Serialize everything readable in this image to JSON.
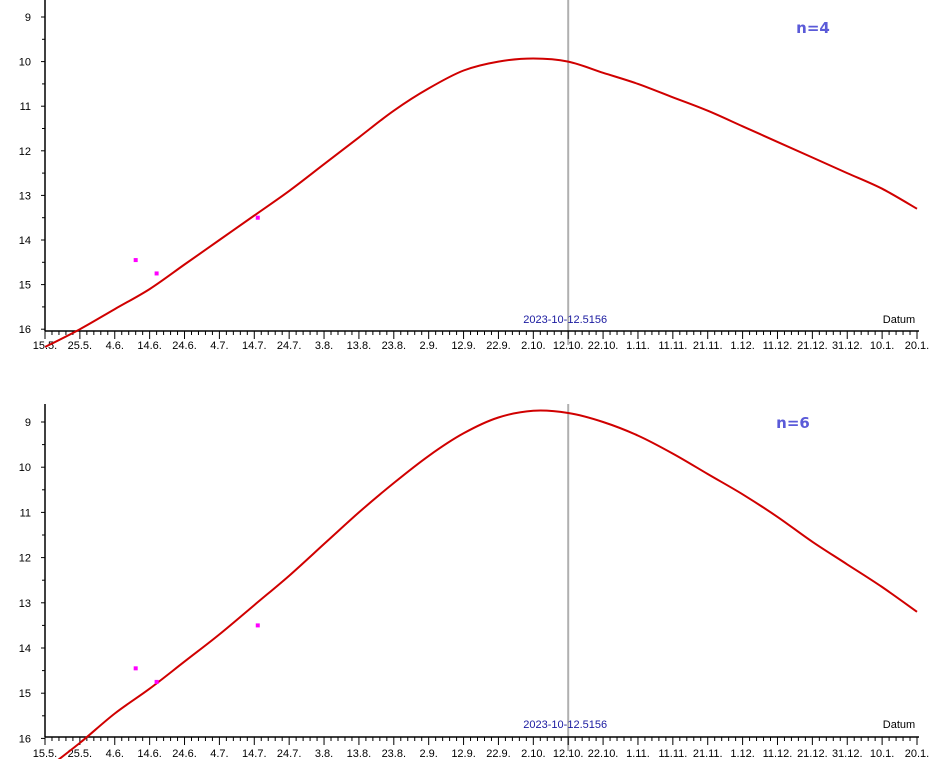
{
  "colors": {
    "curve": "#d00000",
    "points": "#ff00ff",
    "marker": "#b0b0b0",
    "label": "#5a5ad8",
    "date_text": "#1a1aa0",
    "axis": "#000000"
  },
  "chart_data": [
    {
      "type": "line",
      "title": "",
      "annotation": "n=4",
      "xlabel": "Datum",
      "ylabel": "",
      "y_inverted": true,
      "y_ticks": [
        "9",
        "10",
        "11",
        "12",
        "13",
        "14",
        "15",
        "16"
      ],
      "x_ticks": [
        "15.5.",
        "25.5.",
        "4.6.",
        "14.6.",
        "24.6.",
        "4.7.",
        "14.7.",
        "24.7.",
        "3.8.",
        "13.8.",
        "23.8.",
        "2.9.",
        "12.9.",
        "22.9.",
        "2.10.",
        "12.10.",
        "22.10.",
        "1.11.",
        "11.11.",
        "21.11.",
        "1.12.",
        "11.12.",
        "21.12.",
        "31.12.",
        "10.1.",
        "20.1."
      ],
      "marker_label": "2023-10-12.5156",
      "marker_x": "2023-10-12",
      "series": [
        {
          "x": [
            "2023-05-15",
            "2023-05-25",
            "2023-06-04",
            "2023-06-14",
            "2023-06-24",
            "2023-07-04",
            "2023-07-14",
            "2023-07-24",
            "2023-08-03",
            "2023-08-13",
            "2023-08-23",
            "2023-09-02",
            "2023-09-12",
            "2023-09-22",
            "2023-10-02",
            "2023-10-12",
            "2023-10-22",
            "2023-11-01",
            "2023-11-11",
            "2023-11-21",
            "2023-12-01",
            "2023-12-11",
            "2023-12-21",
            "2023-12-31",
            "2024-01-10",
            "2024-01-20"
          ],
          "y": [
            16.4,
            16.0,
            15.55,
            15.1,
            14.55,
            14.0,
            13.45,
            12.9,
            12.3,
            11.7,
            11.1,
            10.6,
            10.2,
            10.0,
            9.93,
            10.0,
            10.25,
            10.5,
            10.8,
            11.1,
            11.45,
            11.8,
            12.15,
            12.5,
            12.85,
            13.3
          ]
        }
      ],
      "observations": {
        "x": [
          "2023-06-10",
          "2023-06-16",
          "2023-07-15"
        ],
        "y": [
          14.45,
          14.75,
          13.5
        ]
      }
    },
    {
      "type": "line",
      "title": "",
      "annotation": "n=6",
      "xlabel": "Datum",
      "ylabel": "",
      "y_inverted": true,
      "y_ticks": [
        "9",
        "10",
        "11",
        "12",
        "13",
        "14",
        "15",
        "16"
      ],
      "x_ticks": [
        "15.5.",
        "25.5.",
        "4.6.",
        "14.6.",
        "24.6.",
        "4.7.",
        "14.7.",
        "24.7.",
        "3.8.",
        "13.8.",
        "23.8.",
        "2.9.",
        "12.9.",
        "22.9.",
        "2.10.",
        "12.10.",
        "22.10.",
        "1.11.",
        "11.11.",
        "21.11.",
        "1.12.",
        "11.12.",
        "21.12.",
        "31.12.",
        "10.1.",
        "20.1."
      ],
      "marker_label": "2023-10-12.5156",
      "marker_x": "2023-10-12",
      "series": [
        {
          "x": [
            "2023-05-15",
            "2023-05-25",
            "2023-06-04",
            "2023-06-14",
            "2023-06-24",
            "2023-07-04",
            "2023-07-14",
            "2023-07-24",
            "2023-08-03",
            "2023-08-13",
            "2023-08-23",
            "2023-09-02",
            "2023-09-12",
            "2023-09-22",
            "2023-10-02",
            "2023-10-12",
            "2023-10-22",
            "2023-11-01",
            "2023-11-11",
            "2023-11-21",
            "2023-12-01",
            "2023-12-11",
            "2023-12-21",
            "2023-12-31",
            "2024-01-10",
            "2024-01-20"
          ],
          "y": [
            16.7,
            16.1,
            15.45,
            14.9,
            14.3,
            13.7,
            13.05,
            12.4,
            11.7,
            11.0,
            10.35,
            9.75,
            9.25,
            8.9,
            8.75,
            8.8,
            9.0,
            9.3,
            9.7,
            10.15,
            10.6,
            11.1,
            11.65,
            12.15,
            12.65,
            13.2
          ]
        }
      ],
      "observations": {
        "x": [
          "2023-06-10",
          "2023-06-16",
          "2023-07-15"
        ],
        "y": [
          14.45,
          14.75,
          13.5
        ]
      }
    }
  ]
}
